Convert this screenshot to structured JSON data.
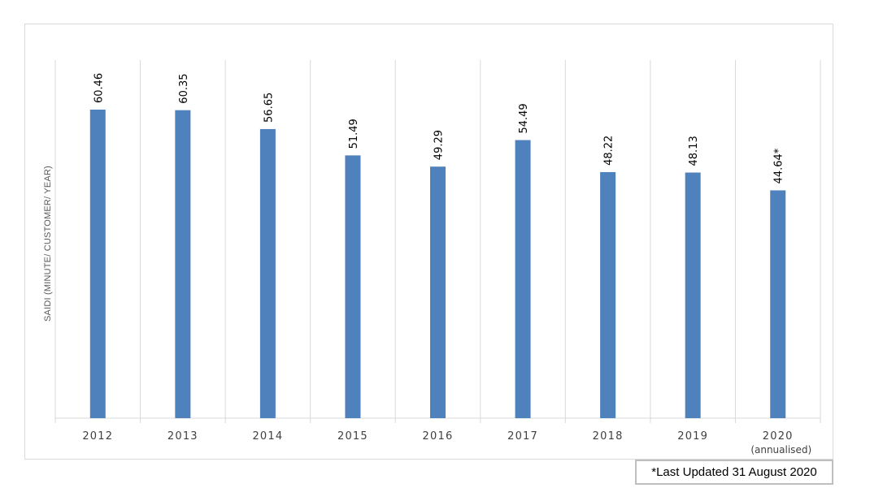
{
  "chart_data": {
    "type": "bar",
    "categories": [
      "2012",
      "2013",
      "2014",
      "2015",
      "2016",
      "2017",
      "2018",
      "2019",
      "2020"
    ],
    "category_sublabels": [
      "",
      "",
      "",
      "",
      "",
      "",
      "",
      "",
      "(annualised)"
    ],
    "values": [
      60.46,
      60.35,
      56.65,
      51.49,
      49.29,
      54.49,
      48.22,
      48.13,
      44.64
    ],
    "data_labels": [
      "60.46",
      "60.35",
      "56.65",
      "51.49",
      "49.29",
      "54.49",
      "48.22",
      "48.13",
      "44.64*"
    ],
    "title": "",
    "xlabel": "",
    "ylabel": "SAIDI (MINUTE/ CUSTOMER/ YEAR)",
    "ylim": [
      0,
      60.46
    ],
    "grid": "vertical separators",
    "bar_color": "#4f81bd"
  },
  "note": "*Last Updated 31 August 2020"
}
